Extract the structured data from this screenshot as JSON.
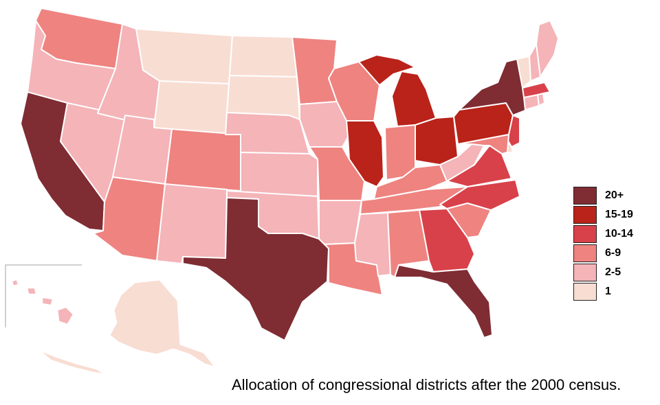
{
  "caption": "Allocation of congressional districts after the 2000 census.",
  "legend": [
    {
      "label": "20+",
      "color": "#7f2c33"
    },
    {
      "label": "15-19",
      "color": "#b92319"
    },
    {
      "label": "10-14",
      "color": "#d8414a"
    },
    {
      "label": "6-9",
      "color": "#ee8380"
    },
    {
      "label": "2-5",
      "color": "#f4b4b8"
    },
    {
      "label": "1",
      "color": "#f8ddd3"
    }
  ],
  "states": [
    {
      "name": "California",
      "bin": "20+"
    },
    {
      "name": "Texas",
      "bin": "20+"
    },
    {
      "name": "Florida",
      "bin": "20+"
    },
    {
      "name": "New York",
      "bin": "20+"
    },
    {
      "name": "Pennsylvania",
      "bin": "15-19"
    },
    {
      "name": "Ohio",
      "bin": "15-19"
    },
    {
      "name": "Michigan",
      "bin": "15-19"
    },
    {
      "name": "Illinois",
      "bin": "15-19"
    },
    {
      "name": "Georgia",
      "bin": "10-14"
    },
    {
      "name": "North Carolina",
      "bin": "10-14"
    },
    {
      "name": "Virginia",
      "bin": "10-14"
    },
    {
      "name": "New Jersey",
      "bin": "10-14"
    },
    {
      "name": "Massachusetts",
      "bin": "10-14"
    },
    {
      "name": "Washington",
      "bin": "6-9"
    },
    {
      "name": "Arizona",
      "bin": "6-9"
    },
    {
      "name": "Colorado",
      "bin": "6-9"
    },
    {
      "name": "Minnesota",
      "bin": "6-9"
    },
    {
      "name": "Wisconsin",
      "bin": "6-9"
    },
    {
      "name": "Missouri",
      "bin": "6-9"
    },
    {
      "name": "Indiana",
      "bin": "6-9"
    },
    {
      "name": "Tennessee",
      "bin": "6-9"
    },
    {
      "name": "Kentucky",
      "bin": "6-9"
    },
    {
      "name": "Alabama",
      "bin": "6-9"
    },
    {
      "name": "Louisiana",
      "bin": "6-9"
    },
    {
      "name": "South Carolina",
      "bin": "6-9"
    },
    {
      "name": "Maryland",
      "bin": "6-9"
    },
    {
      "name": "Oregon",
      "bin": "2-5"
    },
    {
      "name": "Idaho",
      "bin": "2-5"
    },
    {
      "name": "Nevada",
      "bin": "2-5"
    },
    {
      "name": "Utah",
      "bin": "2-5"
    },
    {
      "name": "New Mexico",
      "bin": "2-5"
    },
    {
      "name": "Nebraska",
      "bin": "2-5"
    },
    {
      "name": "Kansas",
      "bin": "2-5"
    },
    {
      "name": "Oklahoma",
      "bin": "2-5"
    },
    {
      "name": "Iowa",
      "bin": "2-5"
    },
    {
      "name": "Arkansas",
      "bin": "2-5"
    },
    {
      "name": "Mississippi",
      "bin": "2-5"
    },
    {
      "name": "West Virginia",
      "bin": "2-5"
    },
    {
      "name": "Connecticut",
      "bin": "2-5"
    },
    {
      "name": "New Hampshire",
      "bin": "2-5"
    },
    {
      "name": "Maine",
      "bin": "2-5"
    },
    {
      "name": "Rhode Island",
      "bin": "2-5"
    },
    {
      "name": "Hawaii",
      "bin": "2-5"
    },
    {
      "name": "Montana",
      "bin": "1"
    },
    {
      "name": "Wyoming",
      "bin": "1"
    },
    {
      "name": "North Dakota",
      "bin": "1"
    },
    {
      "name": "South Dakota",
      "bin": "1"
    },
    {
      "name": "Vermont",
      "bin": "1"
    },
    {
      "name": "Delaware",
      "bin": "1"
    },
    {
      "name": "Alaska",
      "bin": "1"
    }
  ]
}
